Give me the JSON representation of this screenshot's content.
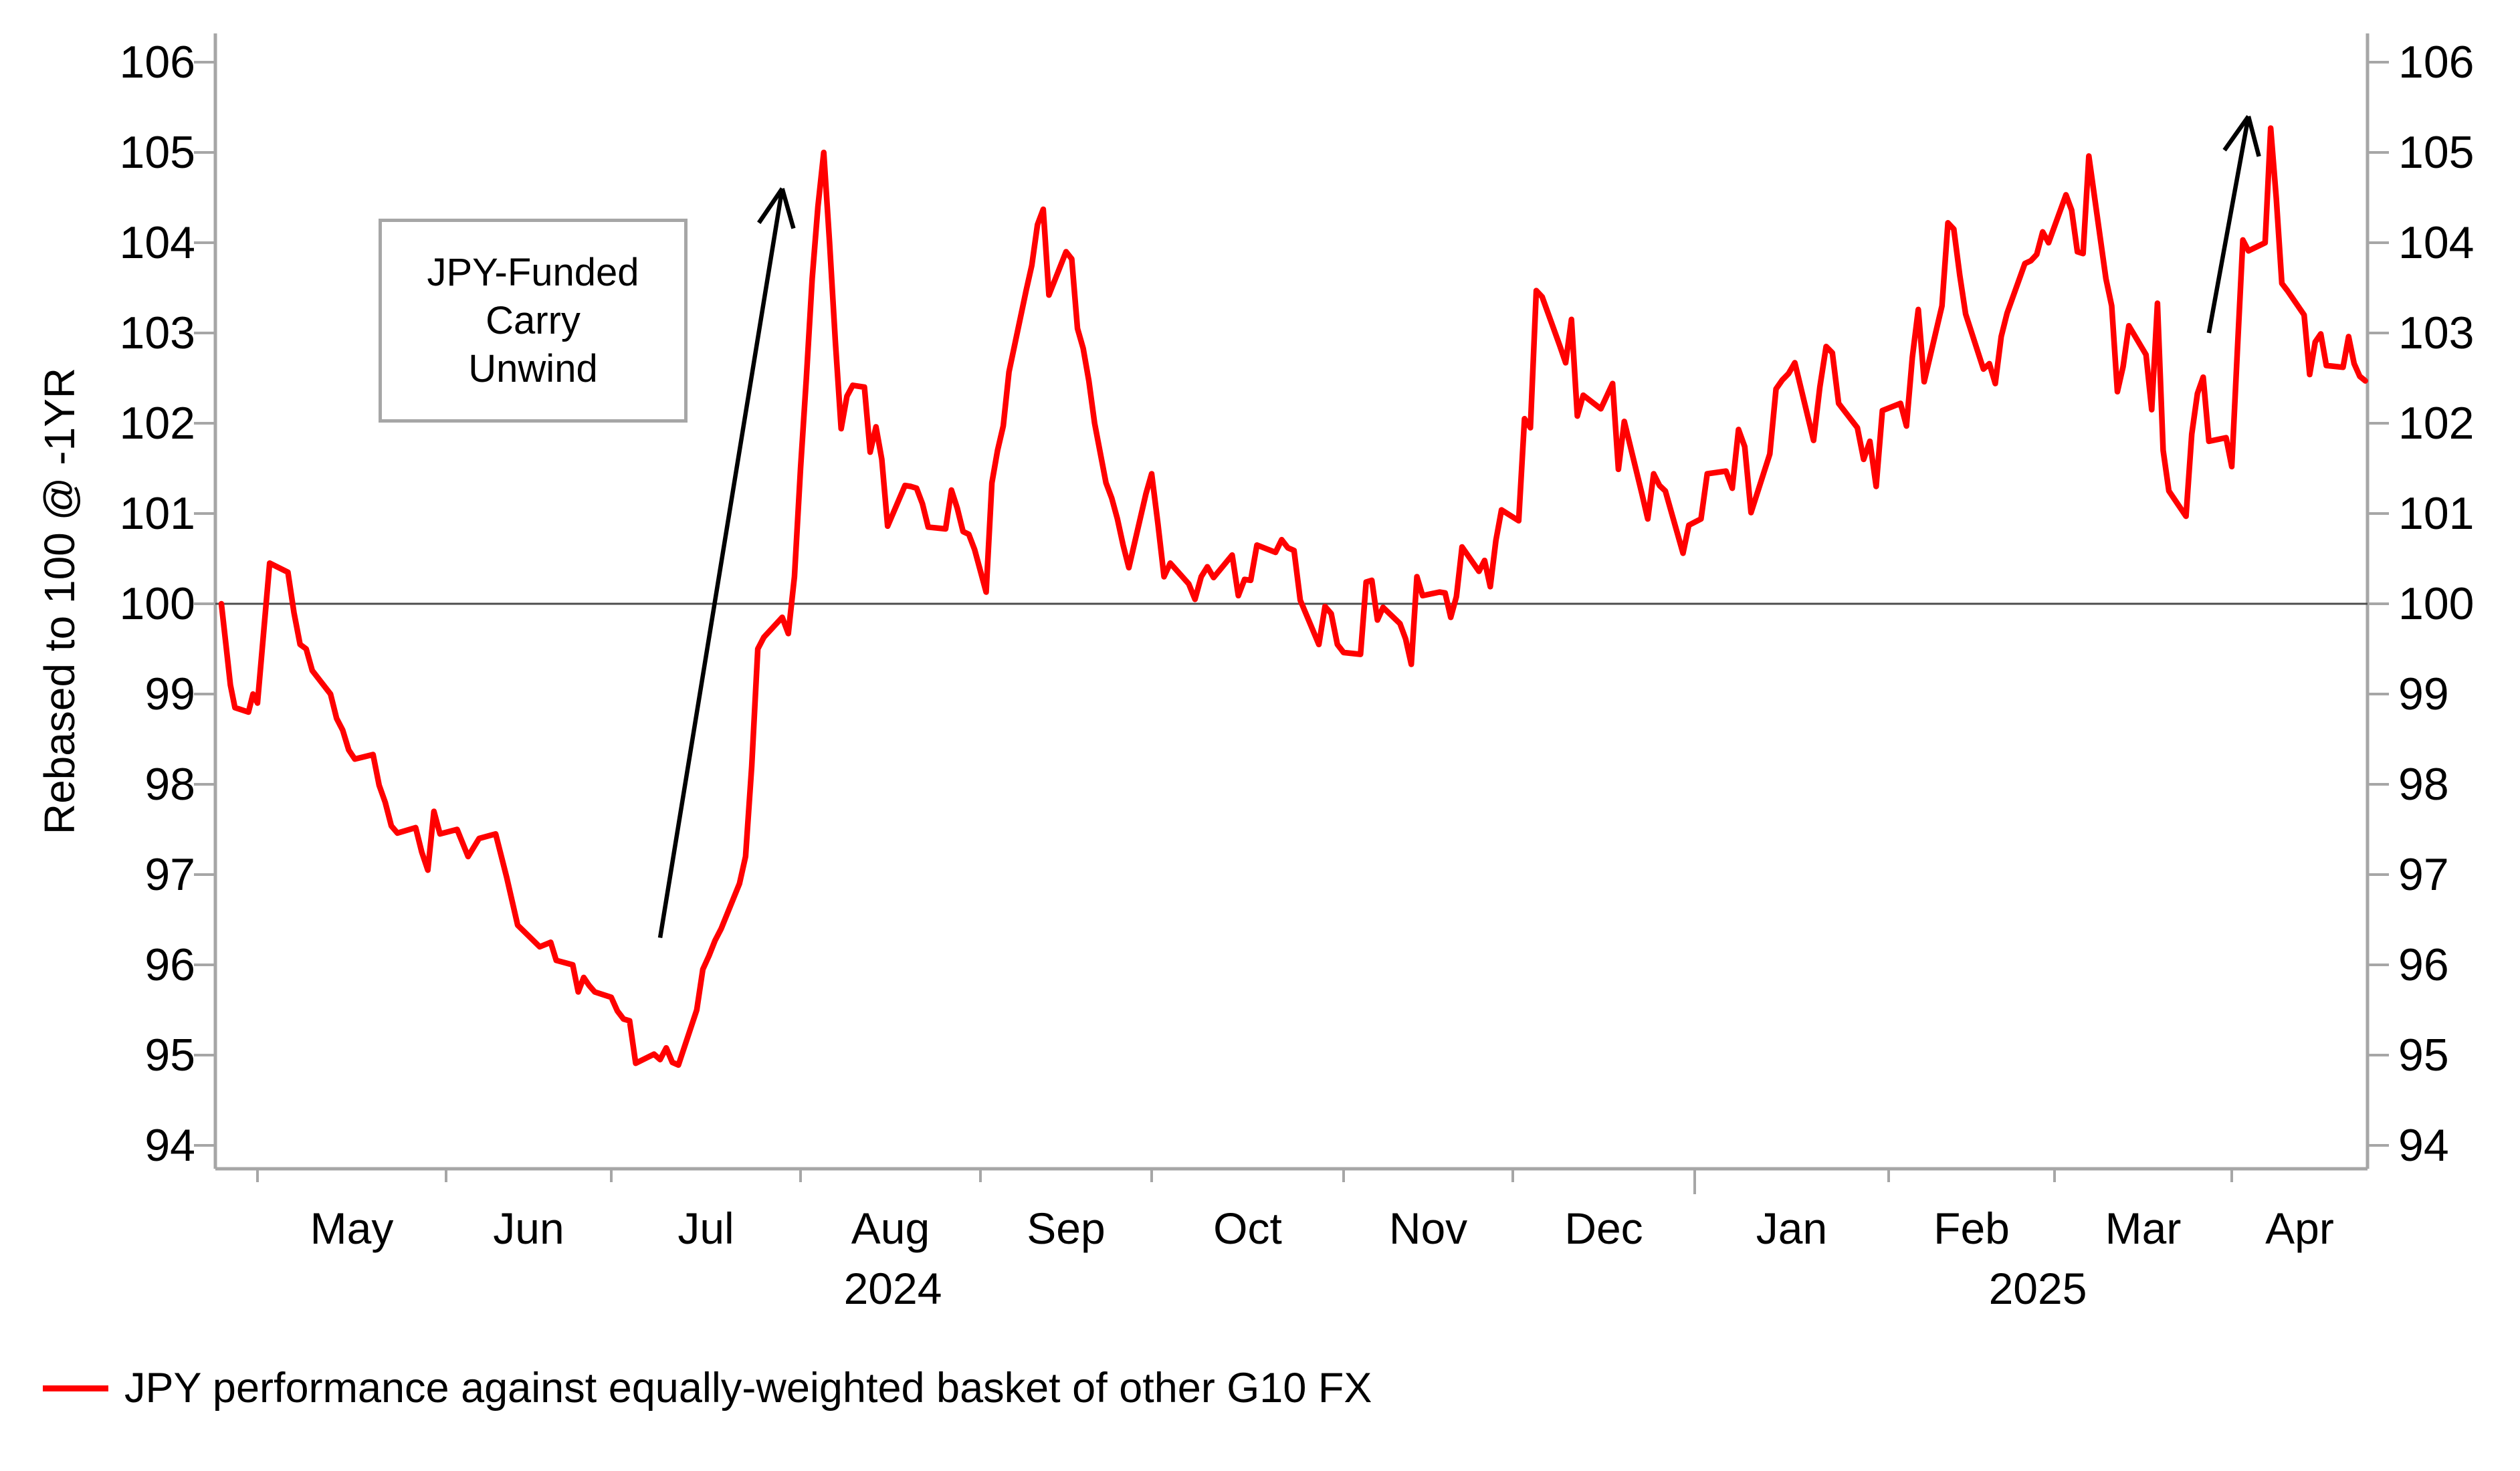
{
  "chart_data": {
    "type": "line",
    "title": "",
    "ylabel": "Rebased to 100 @ -1YR",
    "ylim": [
      93.7,
      106.3
    ],
    "y_ticks": [
      94,
      95,
      96,
      97,
      98,
      99,
      100,
      101,
      102,
      103,
      104,
      105,
      106
    ],
    "baseline": 100,
    "grid": "off",
    "x_month_labels": [
      "May",
      "Jun",
      "Jul",
      "Aug",
      "Sep",
      "Oct",
      "Nov",
      "Dec",
      "Jan",
      "Feb",
      "Mar",
      "Apr"
    ],
    "year_labels": [
      "2024",
      "2025"
    ],
    "legend_position": "bottom-left",
    "legend": [
      {
        "label": "JPY performance against equally-weighted basket of other G10 FX",
        "color": "#ff0000"
      }
    ],
    "annotation": {
      "lines": [
        "JPY-Funded",
        "Carry",
        "Unwind"
      ]
    },
    "arrows": [
      {
        "from": {
          "date": "2024-07-09",
          "value": 96.3
        },
        "to": {
          "date": "2024-07-29",
          "value": 104.6
        }
      },
      {
        "from": {
          "date": "2025-03-28",
          "value": 103.0
        },
        "to": {
          "date": "2025-04-04",
          "value": 105.4
        }
      }
    ],
    "colors": {
      "series": "#ff0000",
      "axis": "#a6a6a6",
      "baseline": "#4d4d4d",
      "text": "#000000"
    },
    "series": [
      {
        "name": "JPY performance against equally-weighted basket of other G10 FX",
        "color": "#ff0000",
        "points": [
          [
            "2024-04-23",
            100.0
          ],
          [
            "2024-04-24",
            99.55
          ],
          [
            "2024-04-25",
            99.1
          ],
          [
            "2024-04-26",
            98.85
          ],
          [
            "2024-04-29",
            98.8
          ],
          [
            "2024-04-30",
            99.0
          ],
          [
            "2024-05-01",
            98.9
          ],
          [
            "2024-05-03",
            100.45
          ],
          [
            "2024-05-06",
            100.35
          ],
          [
            "2024-05-07",
            99.9
          ],
          [
            "2024-05-08",
            99.55
          ],
          [
            "2024-05-09",
            99.5
          ],
          [
            "2024-05-10",
            99.26
          ],
          [
            "2024-05-13",
            99.0
          ],
          [
            "2024-05-14",
            98.73
          ],
          [
            "2024-05-15",
            98.6
          ],
          [
            "2024-05-16",
            98.38
          ],
          [
            "2024-05-17",
            98.28
          ],
          [
            "2024-05-20",
            98.33
          ],
          [
            "2024-05-21",
            97.99
          ],
          [
            "2024-05-22",
            97.8
          ],
          [
            "2024-05-23",
            97.54
          ],
          [
            "2024-05-24",
            97.46
          ],
          [
            "2024-05-27",
            97.52
          ],
          [
            "2024-05-28",
            97.25
          ],
          [
            "2024-05-29",
            97.05
          ],
          [
            "2024-05-30",
            97.7
          ],
          [
            "2024-05-31",
            97.45
          ],
          [
            "2024-06-03",
            97.5
          ],
          [
            "2024-06-05",
            97.2
          ],
          [
            "2024-06-07",
            97.4
          ],
          [
            "2024-06-10",
            97.45
          ],
          [
            "2024-06-12",
            96.97
          ],
          [
            "2024-06-14",
            96.44
          ],
          [
            "2024-06-18",
            96.2
          ],
          [
            "2024-06-20",
            96.25
          ],
          [
            "2024-06-21",
            96.05
          ],
          [
            "2024-06-24",
            96.0
          ],
          [
            "2024-06-25",
            95.7
          ],
          [
            "2024-06-26",
            95.86
          ],
          [
            "2024-06-27",
            95.77
          ],
          [
            "2024-06-28",
            95.7
          ],
          [
            "2024-07-01",
            95.64
          ],
          [
            "2024-07-02",
            95.49
          ],
          [
            "2024-07-03",
            95.4
          ],
          [
            "2024-07-04",
            95.38
          ],
          [
            "2024-07-05",
            94.91
          ],
          [
            "2024-07-08",
            95.01
          ],
          [
            "2024-07-09",
            94.95
          ],
          [
            "2024-07-10",
            95.08
          ],
          [
            "2024-07-11",
            94.92
          ],
          [
            "2024-07-12",
            94.89
          ],
          [
            "2024-07-15",
            95.5
          ],
          [
            "2024-07-16",
            95.95
          ],
          [
            "2024-07-17",
            96.1
          ],
          [
            "2024-07-18",
            96.27
          ],
          [
            "2024-07-19",
            96.4
          ],
          [
            "2024-07-22",
            96.9
          ],
          [
            "2024-07-23",
            97.2
          ],
          [
            "2024-07-24",
            98.2
          ],
          [
            "2024-07-25",
            99.5
          ],
          [
            "2024-07-26",
            99.63
          ],
          [
            "2024-07-29",
            99.85
          ],
          [
            "2024-07-30",
            99.67
          ],
          [
            "2024-07-31",
            100.3
          ],
          [
            "2024-08-01",
            101.5
          ],
          [
            "2024-08-02",
            102.5
          ],
          [
            "2024-08-03",
            103.6
          ],
          [
            "2024-08-04",
            104.4
          ],
          [
            "2024-08-05",
            105.0
          ],
          [
            "2024-08-06",
            104.0
          ],
          [
            "2024-08-07",
            102.9
          ],
          [
            "2024-08-08",
            101.94
          ],
          [
            "2024-08-09",
            102.3
          ],
          [
            "2024-08-10",
            102.42
          ],
          [
            "2024-08-12",
            102.4
          ],
          [
            "2024-08-13",
            101.68
          ],
          [
            "2024-08-14",
            101.96
          ],
          [
            "2024-08-15",
            101.6
          ],
          [
            "2024-08-16",
            100.86
          ],
          [
            "2024-08-19",
            101.31
          ],
          [
            "2024-08-20",
            101.3
          ],
          [
            "2024-08-21",
            101.28
          ],
          [
            "2024-08-22",
            101.11
          ],
          [
            "2024-08-23",
            100.85
          ],
          [
            "2024-08-26",
            100.83
          ],
          [
            "2024-08-27",
            101.26
          ],
          [
            "2024-08-28",
            101.06
          ],
          [
            "2024-08-29",
            100.8
          ],
          [
            "2024-08-30",
            100.77
          ],
          [
            "2024-08-31",
            100.6
          ],
          [
            "2024-09-02",
            100.13
          ],
          [
            "2024-09-03",
            101.34
          ],
          [
            "2024-09-04",
            101.7
          ],
          [
            "2024-09-05",
            101.97
          ],
          [
            "2024-09-06",
            102.57
          ],
          [
            "2024-09-09",
            103.47
          ],
          [
            "2024-09-10",
            103.75
          ],
          [
            "2024-09-11",
            104.2
          ],
          [
            "2024-09-12",
            104.37
          ],
          [
            "2024-09-13",
            103.42
          ],
          [
            "2024-09-16",
            103.9
          ],
          [
            "2024-09-17",
            103.82
          ],
          [
            "2024-09-18",
            103.05
          ],
          [
            "2024-09-19",
            102.83
          ],
          [
            "2024-09-20",
            102.47
          ],
          [
            "2024-09-21",
            102.0
          ],
          [
            "2024-09-23",
            101.34
          ],
          [
            "2024-09-24",
            101.17
          ],
          [
            "2024-09-25",
            100.94
          ],
          [
            "2024-09-26",
            100.65
          ],
          [
            "2024-09-27",
            100.4
          ],
          [
            "2024-09-30",
            101.22
          ],
          [
            "2024-10-01",
            101.44
          ],
          [
            "2024-10-02",
            100.89
          ],
          [
            "2024-10-03",
            100.3
          ],
          [
            "2024-10-04",
            100.45
          ],
          [
            "2024-10-07",
            100.22
          ],
          [
            "2024-10-08",
            100.05
          ],
          [
            "2024-10-09",
            100.3
          ],
          [
            "2024-10-10",
            100.41
          ],
          [
            "2024-10-11",
            100.29
          ],
          [
            "2024-10-14",
            100.54
          ],
          [
            "2024-10-15",
            100.09
          ],
          [
            "2024-10-16",
            100.27
          ],
          [
            "2024-10-17",
            100.26
          ],
          [
            "2024-10-18",
            100.65
          ],
          [
            "2024-10-21",
            100.57
          ],
          [
            "2024-10-22",
            100.71
          ],
          [
            "2024-10-23",
            100.62
          ],
          [
            "2024-10-24",
            100.59
          ],
          [
            "2024-10-25",
            100.04
          ],
          [
            "2024-10-28",
            99.55
          ],
          [
            "2024-10-29",
            99.97
          ],
          [
            "2024-10-30",
            99.89
          ],
          [
            "2024-10-31",
            99.55
          ],
          [
            "2024-11-01",
            99.46
          ],
          [
            "2024-11-04",
            99.44
          ],
          [
            "2024-11-05",
            100.24
          ],
          [
            "2024-11-06",
            100.26
          ],
          [
            "2024-11-07",
            99.82
          ],
          [
            "2024-11-08",
            99.96
          ],
          [
            "2024-11-11",
            99.78
          ],
          [
            "2024-11-12",
            99.61
          ],
          [
            "2024-11-13",
            99.33
          ],
          [
            "2024-11-14",
            100.3
          ],
          [
            "2024-11-15",
            100.09
          ],
          [
            "2024-11-18",
            100.13
          ],
          [
            "2024-11-19",
            100.12
          ],
          [
            "2024-11-20",
            99.85
          ],
          [
            "2024-11-21",
            100.08
          ],
          [
            "2024-11-22",
            100.63
          ],
          [
            "2024-11-25",
            100.36
          ],
          [
            "2024-11-26",
            100.48
          ],
          [
            "2024-11-27",
            100.19
          ],
          [
            "2024-11-28",
            100.7
          ],
          [
            "2024-11-29",
            101.04
          ],
          [
            "2024-12-02",
            100.92
          ],
          [
            "2024-12-03",
            102.05
          ],
          [
            "2024-12-04",
            101.95
          ],
          [
            "2024-12-05",
            103.47
          ],
          [
            "2024-12-06",
            103.4
          ],
          [
            "2024-12-09",
            102.86
          ],
          [
            "2024-12-10",
            102.67
          ],
          [
            "2024-12-11",
            103.15
          ],
          [
            "2024-12-12",
            102.08
          ],
          [
            "2024-12-13",
            102.31
          ],
          [
            "2024-12-16",
            102.16
          ],
          [
            "2024-12-17",
            102.3
          ],
          [
            "2024-12-18",
            102.44
          ],
          [
            "2024-12-19",
            101.49
          ],
          [
            "2024-12-20",
            102.02
          ],
          [
            "2024-12-23",
            101.22
          ],
          [
            "2024-12-24",
            100.94
          ],
          [
            "2024-12-25",
            101.44
          ],
          [
            "2024-12-26",
            101.31
          ],
          [
            "2024-12-27",
            101.25
          ],
          [
            "2024-12-30",
            100.56
          ],
          [
            "2024-12-31",
            100.87
          ],
          [
            "2025-01-02",
            100.94
          ],
          [
            "2025-01-03",
            101.44
          ],
          [
            "2025-01-06",
            101.47
          ],
          [
            "2025-01-07",
            101.28
          ],
          [
            "2025-01-08",
            101.93
          ],
          [
            "2025-01-09",
            101.74
          ],
          [
            "2025-01-10",
            101.01
          ],
          [
            "2025-01-13",
            101.66
          ],
          [
            "2025-01-14",
            102.38
          ],
          [
            "2025-01-15",
            102.48
          ],
          [
            "2025-01-16",
            102.55
          ],
          [
            "2025-01-17",
            102.67
          ],
          [
            "2025-01-20",
            101.81
          ],
          [
            "2025-01-21",
            102.4
          ],
          [
            "2025-01-22",
            102.85
          ],
          [
            "2025-01-23",
            102.78
          ],
          [
            "2025-01-24",
            102.22
          ],
          [
            "2025-01-27",
            101.95
          ],
          [
            "2025-01-28",
            101.6
          ],
          [
            "2025-01-29",
            101.8
          ],
          [
            "2025-01-30",
            101.3
          ],
          [
            "2025-01-31",
            102.14
          ],
          [
            "2025-02-03",
            102.22
          ],
          [
            "2025-02-04",
            101.97
          ],
          [
            "2025-02-05",
            102.73
          ],
          [
            "2025-02-06",
            103.26
          ],
          [
            "2025-02-07",
            102.46
          ],
          [
            "2025-02-10",
            103.3
          ],
          [
            "2025-02-11",
            104.22
          ],
          [
            "2025-02-12",
            104.15
          ],
          [
            "2025-02-13",
            103.64
          ],
          [
            "2025-02-14",
            103.21
          ],
          [
            "2025-02-17",
            102.6
          ],
          [
            "2025-02-18",
            102.66
          ],
          [
            "2025-02-19",
            102.44
          ],
          [
            "2025-02-20",
            102.96
          ],
          [
            "2025-02-21",
            103.22
          ],
          [
            "2025-02-24",
            103.77
          ],
          [
            "2025-02-25",
            103.8
          ],
          [
            "2025-02-26",
            103.87
          ],
          [
            "2025-02-27",
            104.12
          ],
          [
            "2025-02-28",
            104.0
          ],
          [
            "2025-03-03",
            104.53
          ],
          [
            "2025-03-04",
            104.36
          ],
          [
            "2025-03-05",
            103.9
          ],
          [
            "2025-03-06",
            103.88
          ],
          [
            "2025-03-07",
            104.96
          ],
          [
            "2025-03-10",
            103.6
          ],
          [
            "2025-03-11",
            103.3
          ],
          [
            "2025-03-12",
            102.35
          ],
          [
            "2025-03-13",
            102.63
          ],
          [
            "2025-03-14",
            103.08
          ],
          [
            "2025-03-17",
            102.76
          ],
          [
            "2025-03-18",
            102.15
          ],
          [
            "2025-03-19",
            103.33
          ],
          [
            "2025-03-20",
            101.7
          ],
          [
            "2025-03-21",
            101.25
          ],
          [
            "2025-03-24",
            100.97
          ],
          [
            "2025-03-25",
            101.88
          ],
          [
            "2025-03-26",
            102.33
          ],
          [
            "2025-03-27",
            102.51
          ],
          [
            "2025-03-28",
            101.8
          ],
          [
            "2025-03-31",
            101.84
          ],
          [
            "2025-04-01",
            101.52
          ],
          [
            "2025-04-02",
            102.79
          ],
          [
            "2025-04-03",
            104.03
          ],
          [
            "2025-04-04",
            103.91
          ],
          [
            "2025-04-07",
            104.0
          ],
          [
            "2025-04-08",
            105.27
          ],
          [
            "2025-04-09",
            104.49
          ],
          [
            "2025-04-10",
            103.55
          ],
          [
            "2025-04-11",
            103.47
          ],
          [
            "2025-04-14",
            103.2
          ],
          [
            "2025-04-15",
            102.54
          ],
          [
            "2025-04-16",
            102.9
          ],
          [
            "2025-04-17",
            102.99
          ],
          [
            "2025-04-18",
            102.64
          ],
          [
            "2025-04-21",
            102.62
          ],
          [
            "2025-04-22",
            102.96
          ],
          [
            "2025-04-23",
            102.66
          ],
          [
            "2025-04-24",
            102.52
          ],
          [
            "2025-04-25",
            102.47
          ]
        ]
      }
    ]
  }
}
